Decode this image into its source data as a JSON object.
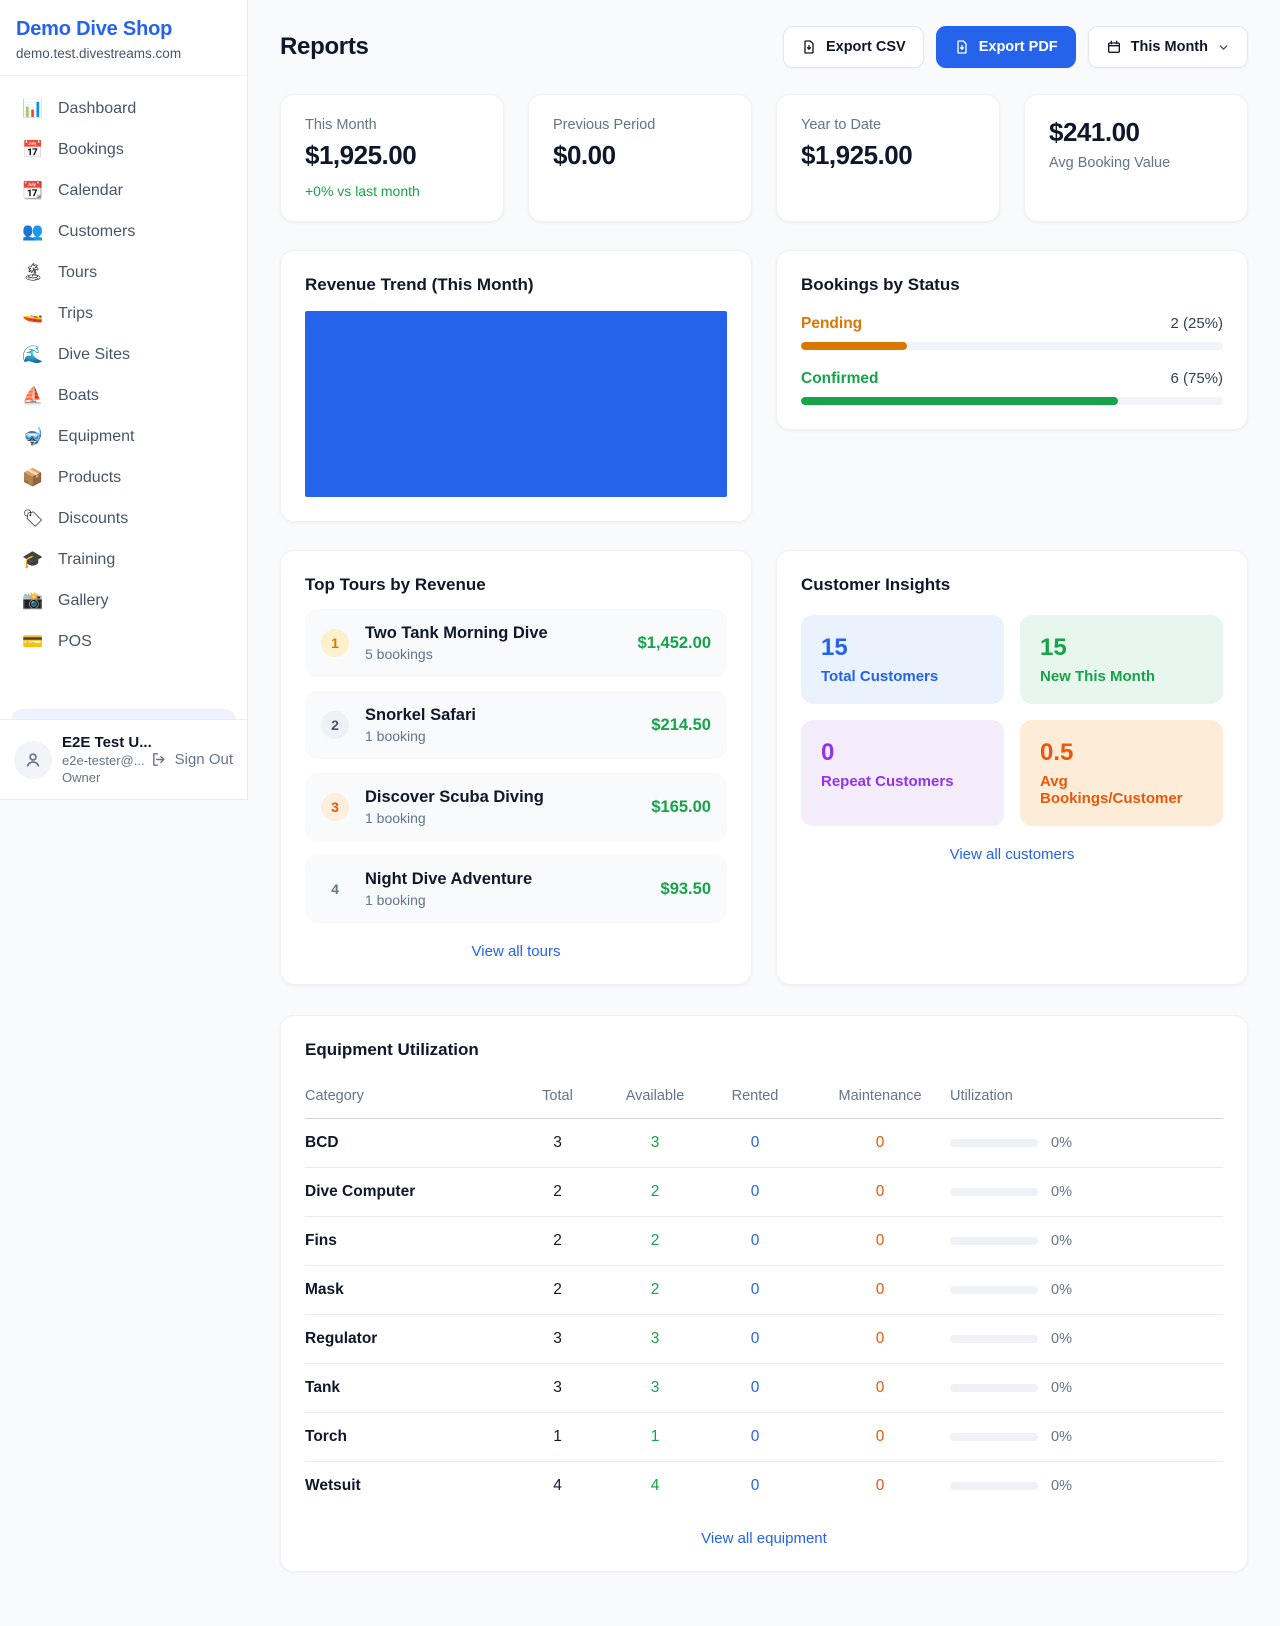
{
  "sidebar": {
    "brand": {
      "name": "Demo Dive Shop",
      "domain": "demo.test.divestreams.com"
    },
    "items": [
      {
        "icon": "📊",
        "label": "Dashboard"
      },
      {
        "icon": "📅",
        "label": "Bookings"
      },
      {
        "icon": "📆",
        "label": "Calendar"
      },
      {
        "icon": "👥",
        "label": "Customers"
      },
      {
        "icon": "🏝",
        "label": "Tours"
      },
      {
        "icon": "🚤",
        "label": "Trips"
      },
      {
        "icon": "🌊",
        "label": "Dive Sites"
      },
      {
        "icon": "⛵",
        "label": "Boats"
      },
      {
        "icon": "🤿",
        "label": "Equipment"
      },
      {
        "icon": "📦",
        "label": "Products"
      },
      {
        "icon": "🏷",
        "label": "Discounts"
      },
      {
        "icon": "🎓",
        "label": "Training"
      },
      {
        "icon": "📸",
        "label": "Gallery"
      },
      {
        "icon": "💳",
        "label": "POS"
      }
    ],
    "footer": {
      "name": "E2E Test U...",
      "email": "e2e-tester@...",
      "role": "Owner",
      "signout": "Sign Out"
    }
  },
  "header": {
    "title": "Reports",
    "export_csv": "Export CSV",
    "export_pdf": "Export PDF",
    "period": "This Month"
  },
  "stats": [
    {
      "label": "This Month",
      "value": "$1,925.00",
      "delta": "+0% vs last month"
    },
    {
      "label": "Previous Period",
      "value": "$0.00"
    },
    {
      "label": "Year to Date",
      "value": "$1,925.00"
    },
    {
      "label": "Avg Booking Value",
      "value": "$241.00"
    }
  ],
  "revenue_trend": {
    "title": "Revenue Trend (This Month)",
    "bar_color": "#2563eb"
  },
  "bookings_by_status": {
    "title": "Bookings by Status",
    "rows": [
      {
        "label": "Pending",
        "value": "2 (25%)",
        "pct": 25,
        "color": "#d97706"
      },
      {
        "label": "Confirmed",
        "value": "6 (75%)",
        "pct": 75,
        "color": "#16a34a"
      }
    ]
  },
  "top_tours": {
    "title": "Top Tours by Revenue",
    "link": "View all tours",
    "items": [
      {
        "rank": "1",
        "name": "Two Tank Morning Dive",
        "bookings": "5 bookings",
        "revenue": "$1,452.00"
      },
      {
        "rank": "2",
        "name": "Snorkel Safari",
        "bookings": "1 booking",
        "revenue": "$214.50"
      },
      {
        "rank": "3",
        "name": "Discover Scuba Diving",
        "bookings": "1 booking",
        "revenue": "$165.00"
      },
      {
        "rank": "4",
        "name": "Night Dive Adventure",
        "bookings": "1 booking",
        "revenue": "$93.50"
      }
    ]
  },
  "customer_insights": {
    "title": "Customer Insights",
    "link": "View all customers",
    "tiles": [
      {
        "value": "15",
        "label": "Total Customers",
        "theme": "blue"
      },
      {
        "value": "15",
        "label": "New This Month",
        "theme": "green"
      },
      {
        "value": "0",
        "label": "Repeat Customers",
        "theme": "purple"
      },
      {
        "value": "0.5",
        "label": "Avg Bookings/Customer",
        "theme": "orange"
      }
    ]
  },
  "equipment": {
    "title": "Equipment Utilization",
    "link": "View all equipment",
    "columns": [
      "Category",
      "Total",
      "Available",
      "Rented",
      "Maintenance",
      "Utilization"
    ],
    "rows": [
      {
        "category": "BCD",
        "total": "3",
        "available": "3",
        "rented": "0",
        "maintenance": "0",
        "utilization_pct": 0,
        "utilization": "0%"
      },
      {
        "category": "Dive Computer",
        "total": "2",
        "available": "2",
        "rented": "0",
        "maintenance": "0",
        "utilization_pct": 0,
        "utilization": "0%"
      },
      {
        "category": "Fins",
        "total": "2",
        "available": "2",
        "rented": "0",
        "maintenance": "0",
        "utilization_pct": 0,
        "utilization": "0%"
      },
      {
        "category": "Mask",
        "total": "2",
        "available": "2",
        "rented": "0",
        "maintenance": "0",
        "utilization_pct": 0,
        "utilization": "0%"
      },
      {
        "category": "Regulator",
        "total": "3",
        "available": "3",
        "rented": "0",
        "maintenance": "0",
        "utilization_pct": 0,
        "utilization": "0%"
      },
      {
        "category": "Tank",
        "total": "3",
        "available": "3",
        "rented": "0",
        "maintenance": "0",
        "utilization_pct": 0,
        "utilization": "0%"
      },
      {
        "category": "Torch",
        "total": "1",
        "available": "1",
        "rented": "0",
        "maintenance": "0",
        "utilization_pct": 0,
        "utilization": "0%"
      },
      {
        "category": "Wetsuit",
        "total": "4",
        "available": "4",
        "rented": "0",
        "maintenance": "0",
        "utilization_pct": 0,
        "utilization": "0%"
      }
    ]
  },
  "colors": {
    "accent": "#2563eb",
    "green": "#16a34a",
    "orange": "#ea580c",
    "amber": "#d97706",
    "purple": "#9333ea"
  }
}
